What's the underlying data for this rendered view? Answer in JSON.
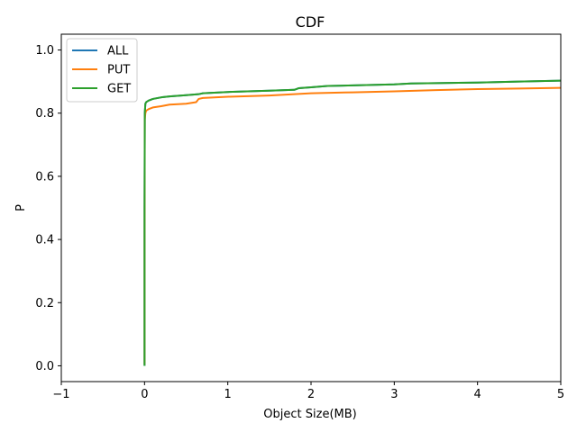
{
  "chart_data": {
    "type": "line",
    "title": "CDF",
    "xlabel": "Object Size(MB)",
    "ylabel": "P",
    "xlim": [
      -1,
      5
    ],
    "ylim": [
      -0.05,
      1.05
    ],
    "xticks": [
      "−1",
      "0",
      "1",
      "2",
      "3",
      "4",
      "5"
    ],
    "xtick_values": [
      -1,
      0,
      1,
      2,
      3,
      4,
      5
    ],
    "yticks": [
      "0.0",
      "0.2",
      "0.4",
      "0.6",
      "0.8",
      "1.0"
    ],
    "ytick_values": [
      0.0,
      0.2,
      0.4,
      0.6,
      0.8,
      1.0
    ],
    "grid": false,
    "legend_position": "top-left",
    "series": [
      {
        "name": "ALL",
        "color": "#1f77b4",
        "x": [
          0,
          0,
          0.003,
          0.01,
          0.02,
          0.05,
          0.1,
          0.2,
          0.3,
          0.5,
          0.65,
          0.7,
          1.0,
          1.5,
          1.8,
          1.85,
          2.0,
          2.2,
          2.5,
          3.0,
          3.2,
          3.5,
          4.0,
          4.5,
          5.0
        ],
        "y": [
          0.0,
          0.5,
          0.8,
          0.83,
          0.835,
          0.84,
          0.845,
          0.85,
          0.853,
          0.857,
          0.86,
          0.863,
          0.867,
          0.871,
          0.874,
          0.879,
          0.882,
          0.886,
          0.888,
          0.891,
          0.894,
          0.895,
          0.897,
          0.9,
          0.903
        ]
      },
      {
        "name": "PUT",
        "color": "#ff7f0e",
        "x": [
          0,
          0,
          0.003,
          0.01,
          0.02,
          0.05,
          0.1,
          0.2,
          0.3,
          0.5,
          0.62,
          0.65,
          0.7,
          1.0,
          1.5,
          1.8,
          2.0,
          2.5,
          3.0,
          3.5,
          4.0,
          4.5,
          5.0
        ],
        "y": [
          0.005,
          0.4,
          0.78,
          0.8,
          0.808,
          0.813,
          0.818,
          0.822,
          0.827,
          0.83,
          0.835,
          0.845,
          0.848,
          0.852,
          0.856,
          0.86,
          0.863,
          0.866,
          0.869,
          0.873,
          0.876,
          0.878,
          0.88
        ]
      },
      {
        "name": "GET",
        "color": "#2ca02c",
        "x": [
          0,
          0,
          0.003,
          0.01,
          0.02,
          0.05,
          0.1,
          0.2,
          0.3,
          0.5,
          0.65,
          0.7,
          1.0,
          1.5,
          1.8,
          1.85,
          2.0,
          2.2,
          2.5,
          3.0,
          3.2,
          3.5,
          4.0,
          4.5,
          5.0
        ],
        "y": [
          0.0,
          0.5,
          0.8,
          0.83,
          0.835,
          0.84,
          0.845,
          0.85,
          0.853,
          0.857,
          0.86,
          0.863,
          0.867,
          0.871,
          0.874,
          0.879,
          0.882,
          0.886,
          0.888,
          0.891,
          0.894,
          0.895,
          0.897,
          0.9,
          0.903
        ]
      }
    ]
  }
}
